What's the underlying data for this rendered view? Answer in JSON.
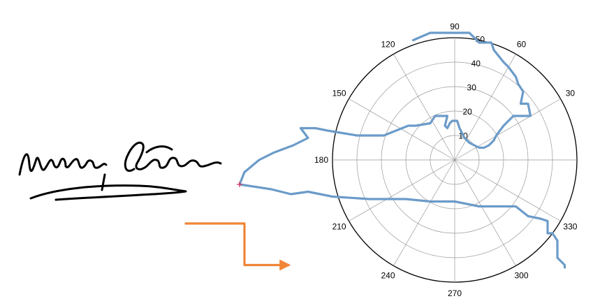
{
  "signature": {
    "text": "Maria Sotelo"
  },
  "chart_data": {
    "type": "polar-line",
    "title": "",
    "angle_unit": "degrees",
    "angle_ticks": [
      0,
      30,
      60,
      90,
      120,
      150,
      180,
      210,
      240,
      270,
      300,
      330
    ],
    "angle_tick_labels": [
      "",
      "30",
      "60",
      "90",
      "120",
      "150",
      "180",
      "210",
      "240",
      "270",
      "300",
      "330"
    ],
    "radial_ticks": [
      10,
      20,
      30,
      40,
      50
    ],
    "rlim": [
      0,
      50
    ],
    "grid": true,
    "colors": {
      "trajectory": "#6b9bc9",
      "endpoint_segment": "#f08538",
      "start_marker": "#e0305a",
      "grid": "#999999"
    },
    "series": [
      {
        "id": "trajectory",
        "points": [
          [
            -17,
            49
          ],
          [
            -10,
            52
          ],
          [
            -2,
            52
          ],
          [
            3,
            52
          ],
          [
            6,
            52
          ],
          [
            10,
            48
          ],
          [
            15,
            48
          ],
          [
            16,
            45
          ],
          [
            20,
            40
          ],
          [
            22,
            38
          ],
          [
            25,
            34
          ],
          [
            26,
            31
          ],
          [
            28,
            28
          ],
          [
            27,
            23
          ],
          [
            30,
            23
          ],
          [
            31,
            18
          ],
          [
            24,
            18
          ],
          [
            20,
            14
          ],
          [
            17,
            10
          ],
          [
            16,
            8
          ],
          [
            14,
            6
          ],
          [
            12,
            5
          ],
          [
            10,
            5
          ],
          [
            8,
            6
          ],
          [
            6,
            7
          ],
          [
            5,
            8
          ],
          [
            4,
            9
          ],
          [
            2,
            13
          ],
          [
            1,
            16
          ],
          [
            -1,
            16
          ],
          [
            -2,
            15
          ],
          [
            -3,
            13
          ],
          [
            -4,
            14
          ],
          [
            -3,
            18
          ],
          [
            -8,
            18
          ],
          [
            -10,
            15
          ],
          [
            -16,
            14
          ],
          [
            -19,
            14
          ],
          [
            -29,
            10
          ],
          [
            -40,
            10
          ],
          [
            -52,
            12
          ],
          [
            -57,
            13
          ],
          [
            -59,
            13
          ],
          [
            -63,
            13
          ],
          [
            -60,
            9
          ],
          [
            -66,
            6
          ],
          [
            -74,
            3
          ],
          [
            -80,
            0
          ],
          [
            -86,
            -5
          ],
          [
            -88,
            -10
          ],
          [
            -75,
            -12
          ],
          [
            -67,
            -14
          ],
          [
            -60,
            -13
          ],
          [
            -50,
            -15
          ],
          [
            -35,
            -16
          ],
          [
            -20,
            -16
          ],
          [
            -10,
            -17
          ],
          [
            0,
            -17
          ],
          [
            10,
            -19
          ],
          [
            20,
            -19
          ],
          [
            25,
            -19
          ],
          [
            30,
            -23
          ],
          [
            35,
            -24
          ],
          [
            38,
            -25
          ],
          [
            38,
            -30
          ],
          [
            40,
            -30
          ],
          [
            42,
            -33
          ],
          [
            42,
            -40
          ],
          [
            45,
            -43
          ],
          [
            45,
            -44
          ]
        ]
      },
      {
        "id": "endpoint_segment",
        "points": [
          [
            -110,
            -26
          ],
          [
            -86,
            -26
          ],
          [
            -86,
            -43
          ],
          [
            -68,
            -43
          ]
        ],
        "arrow": true
      }
    ],
    "start_marker": [
      -88,
      -10
    ]
  }
}
